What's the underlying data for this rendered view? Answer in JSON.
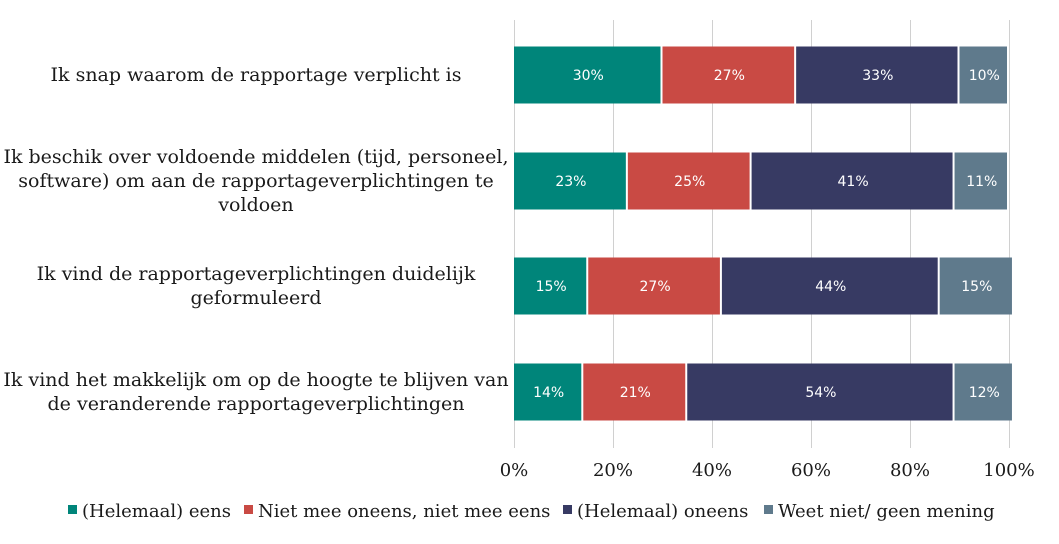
{
  "chart_data": {
    "type": "bar",
    "orientation": "horizontal",
    "stacked": true,
    "categories": [
      [
        "Ik snap waarom de rapportage verplicht is"
      ],
      [
        "Ik beschik over voldoende middelen (tijd, personeel,",
        "software) om aan de rapportageverplichtingen te",
        "voldoen"
      ],
      [
        "Ik vind de rapportageverplichtingen duidelijk",
        "geformuleerd"
      ],
      [
        "Ik vind het makkelijk om op de hoogte te blijven van",
        "de veranderende rapportageverplichtingen"
      ]
    ],
    "series": [
      {
        "name": "(Helemaal) eens",
        "color": "#00857a",
        "values": [
          30,
          23,
          15,
          14
        ]
      },
      {
        "name": "Niet mee oneens, niet mee eens",
        "color": "#c94a44",
        "values": [
          27,
          25,
          27,
          21
        ]
      },
      {
        "name": "(Helemaal) oneens",
        "color": "#373a63",
        "values": [
          33,
          41,
          44,
          54
        ]
      },
      {
        "name": "Weet niet/ geen mening",
        "color": "#5f7a8c",
        "values": [
          10,
          11,
          15,
          12
        ]
      }
    ],
    "data_labels": [
      [
        "30%",
        "27%",
        "33%",
        "10%"
      ],
      [
        "23%",
        "25%",
        "41%",
        "11%"
      ],
      [
        "15%",
        "27%",
        "44%",
        "15%"
      ],
      [
        "14%",
        "21%",
        "54%",
        "12%"
      ]
    ],
    "x_ticks": [
      "0%",
      "20%",
      "40%",
      "60%",
      "80%",
      "100%"
    ],
    "xlim": [
      0,
      100
    ],
    "grid": true,
    "legend_position": "bottom"
  }
}
